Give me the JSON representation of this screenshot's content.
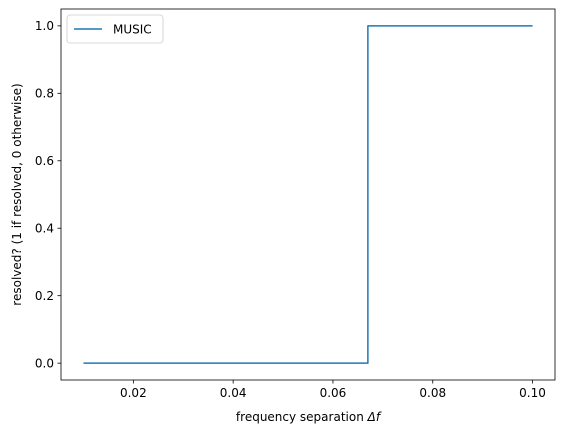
{
  "chart_data": {
    "type": "line",
    "xlabel": "frequency separation",
    "xlabel_symbol": "Δf",
    "ylabel": "resolved? (1 if resolved, 0 otherwise)",
    "xlim": [
      0.0055,
      0.1045
    ],
    "ylim": [
      -0.05,
      1.05
    ],
    "xticks": [
      0.02,
      0.04,
      0.06,
      0.08,
      0.1
    ],
    "xtick_labels": [
      "0.02",
      "0.04",
      "0.06",
      "0.08",
      "0.10"
    ],
    "yticks": [
      0.0,
      0.2,
      0.4,
      0.6,
      0.8,
      1.0
    ],
    "ytick_labels": [
      "0.0",
      "0.2",
      "0.4",
      "0.6",
      "0.8",
      "1.0"
    ],
    "grid": false,
    "legend": {
      "placement": "upper-left"
    },
    "series": [
      {
        "name": "MUSIC",
        "color": "#1f77b4",
        "x": [
          0.01,
          0.067,
          0.067,
          0.1
        ],
        "y": [
          0,
          0,
          1,
          1
        ]
      }
    ]
  }
}
